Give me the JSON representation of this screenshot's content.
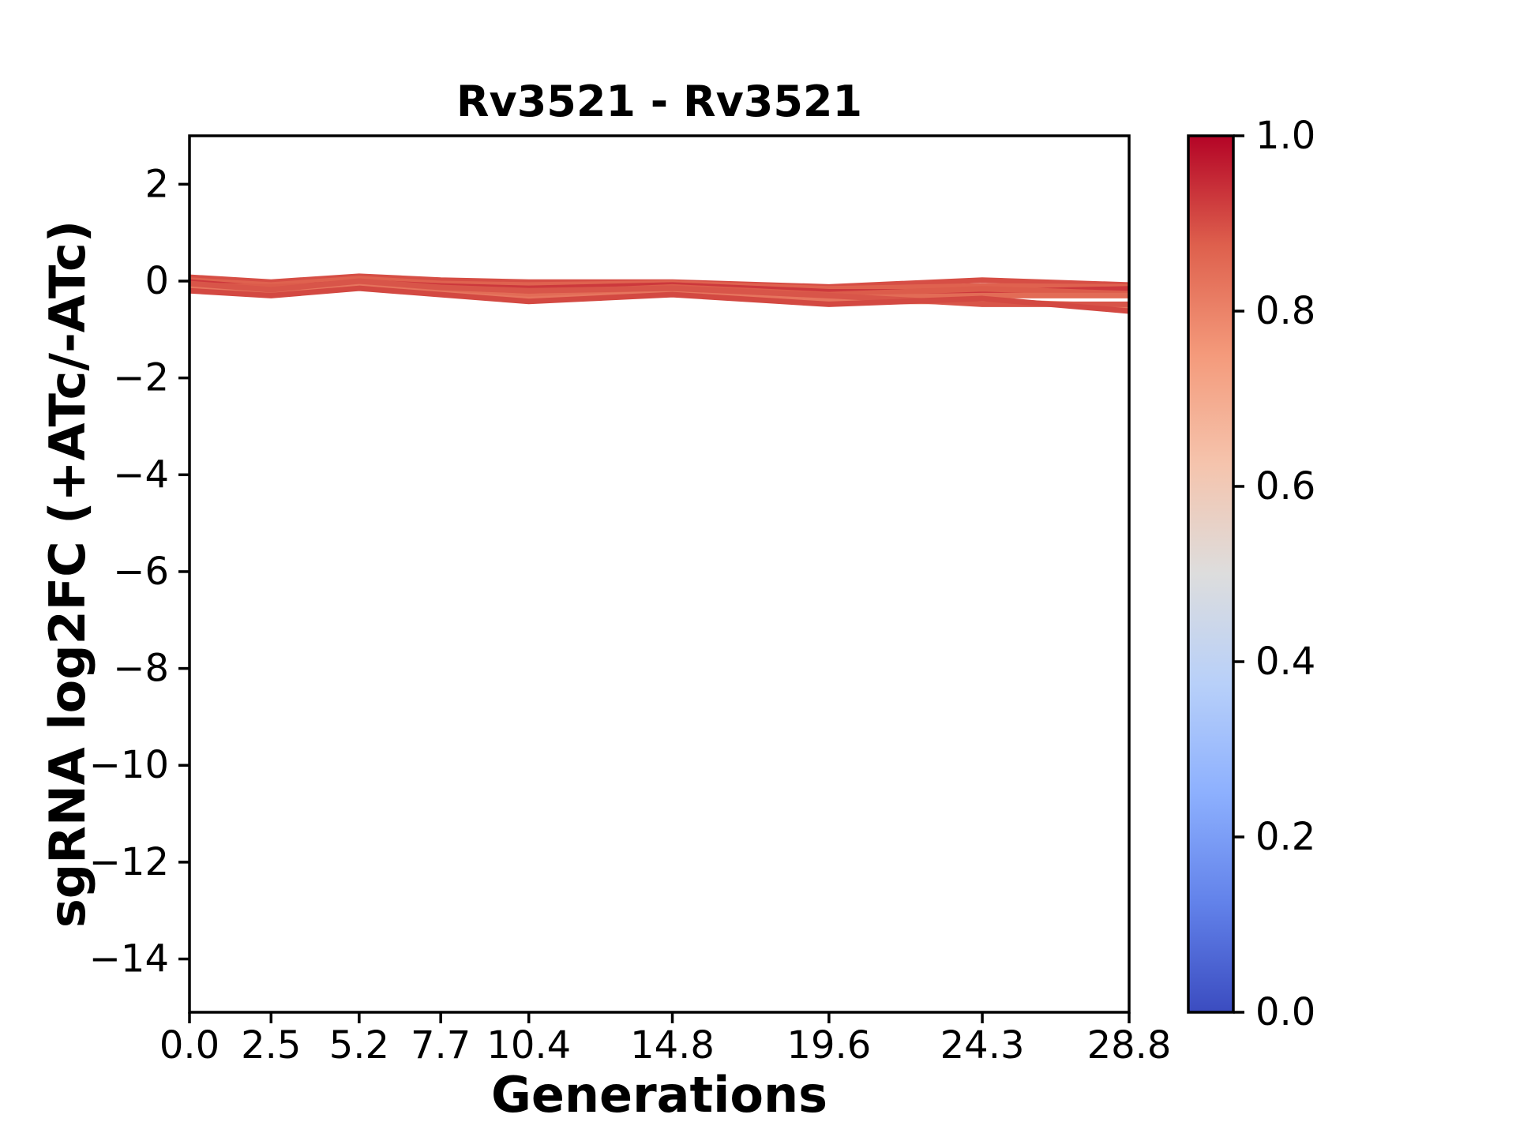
{
  "chart_data": {
    "type": "line",
    "title": "Rv3521 - Rv3521",
    "xlabel": "Generations",
    "ylabel": "sgRNA log2FC (+ATc/-ATc)",
    "xlim": [
      0.0,
      28.8
    ],
    "ylim": [
      -15.1,
      3.0
    ],
    "grid": false,
    "legend_position": "none",
    "x": [
      0.0,
      2.5,
      5.2,
      7.7,
      10.4,
      14.8,
      19.6,
      24.3,
      28.8
    ],
    "xticks": [
      0.0,
      2.5,
      5.2,
      7.7,
      10.4,
      14.8,
      19.6,
      24.3,
      28.8
    ],
    "xtick_labels": [
      "0.0",
      "2.5",
      "5.2",
      "7.7",
      "10.4",
      "14.8",
      "19.6",
      "24.3",
      "28.8"
    ],
    "yticks": [
      2,
      0,
      -2,
      -4,
      -6,
      -8,
      -10,
      -12,
      -14
    ],
    "ytick_labels": [
      "2",
      "0",
      "−2",
      "−4",
      "−6",
      "−8",
      "−10",
      "−12",
      "−14"
    ],
    "series": [
      {
        "colormap_value": 0.9,
        "color": "#d64e45",
        "values": [
          0.08,
          -0.02,
          0.1,
          0.02,
          -0.02,
          -0.02,
          -0.12,
          0.02,
          -0.08
        ]
      },
      {
        "colormap_value": 0.87,
        "color": "#df624f",
        "values": [
          0.02,
          -0.08,
          0.05,
          -0.05,
          -0.08,
          -0.04,
          -0.16,
          -0.1,
          -0.12
        ]
      },
      {
        "colormap_value": 0.93,
        "color": "#cc383c",
        "values": [
          -0.02,
          -0.15,
          -0.02,
          -0.1,
          -0.15,
          -0.08,
          -0.22,
          -0.22,
          -0.16
        ]
      },
      {
        "colormap_value": 0.88,
        "color": "#dc5c4b",
        "values": [
          -0.08,
          -0.12,
          -0.06,
          -0.16,
          -0.25,
          -0.12,
          -0.28,
          -0.16,
          -0.26
        ]
      },
      {
        "colormap_value": 0.85,
        "color": "#e26c56",
        "values": [
          -0.12,
          -0.2,
          -0.1,
          -0.22,
          -0.32,
          -0.18,
          -0.35,
          -0.3,
          -0.3
        ]
      },
      {
        "colormap_value": 0.83,
        "color": "#e6755e",
        "values": [
          -0.16,
          -0.25,
          -0.12,
          -0.26,
          -0.38,
          -0.24,
          -0.42,
          -0.42,
          -0.52
        ]
      },
      {
        "colormap_value": 0.89,
        "color": "#d85549",
        "values": [
          -0.05,
          -0.18,
          0.0,
          -0.13,
          -0.2,
          -0.15,
          -0.3,
          -0.48,
          -0.48
        ]
      },
      {
        "colormap_value": 0.91,
        "color": "#d34942",
        "values": [
          -0.2,
          -0.3,
          -0.15,
          -0.28,
          -0.42,
          -0.28,
          -0.48,
          -0.36,
          -0.62
        ]
      }
    ],
    "colorbar": {
      "min": 0.0,
      "max": 1.0,
      "ticks": [
        1.0,
        0.8,
        0.6,
        0.4,
        0.2,
        0.0
      ],
      "tick_labels": [
        "1.0",
        "0.8",
        "0.6",
        "0.4",
        "0.2",
        "0.0"
      ],
      "colormap": "coolwarm",
      "stops": [
        {
          "t": 0.0,
          "color": "#3b4cc0"
        },
        {
          "t": 0.125,
          "color": "#6282ea"
        },
        {
          "t": 0.25,
          "color": "#8db0fe"
        },
        {
          "t": 0.375,
          "color": "#b8d0f9"
        },
        {
          "t": 0.5,
          "color": "#dddddd"
        },
        {
          "t": 0.625,
          "color": "#f5c4ad"
        },
        {
          "t": 0.75,
          "color": "#f49a7b"
        },
        {
          "t": 0.875,
          "color": "#de604d"
        },
        {
          "t": 1.0,
          "color": "#b40426"
        }
      ]
    },
    "colors": {
      "background": "#ffffff",
      "axes": "#000000",
      "text": "#000000"
    }
  }
}
